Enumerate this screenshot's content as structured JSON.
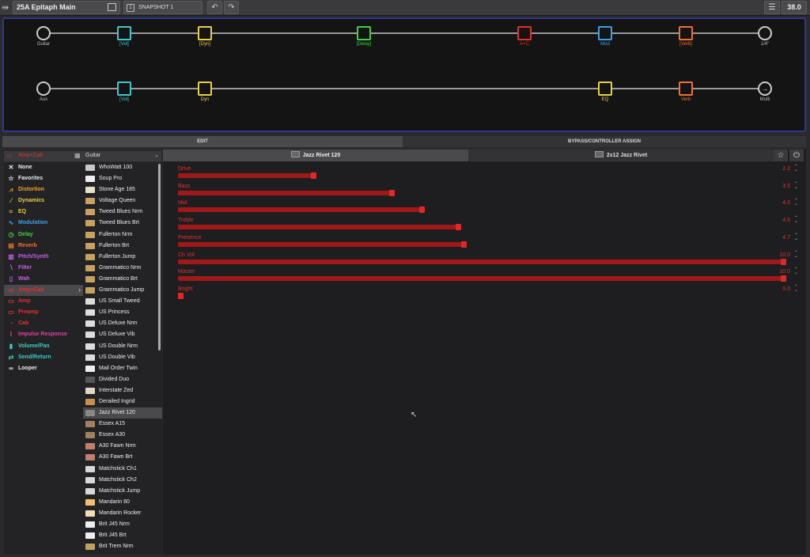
{
  "topbar": {
    "preset_name": "25A  Epitaph Main",
    "snapshot": "SNAPSHOT 1",
    "tempo": "38.0"
  },
  "signal_chain": {
    "path_a": [
      {
        "label": "Guitar",
        "kind": "input",
        "color": "#bbbbbb",
        "icon": "guitar-icon"
      },
      {
        "label": "[Vol]",
        "kind": "block",
        "color": "#3ec8c8",
        "icon": "volume-icon"
      },
      {
        "label": "[Dyn]",
        "kind": "block",
        "color": "#e8d040",
        "icon": "dynamics-icon"
      },
      {
        "label": "[Delay]",
        "kind": "block",
        "color": "#40d040",
        "icon": "delay-icon"
      },
      {
        "label": "A+C",
        "kind": "block",
        "color": "#e03030",
        "icon": "amp-cab-icon"
      },
      {
        "label": "Mod",
        "kind": "block",
        "color": "#3aa0e8",
        "icon": "modulation-icon"
      },
      {
        "label": "[Verb]",
        "kind": "block",
        "color": "#f07030",
        "icon": "reverb-icon"
      },
      {
        "label": "1/4\"",
        "kind": "output",
        "color": "#bbbbbb",
        "icon": "output-jack-icon"
      }
    ],
    "path_b": [
      {
        "label": "Aux",
        "kind": "input",
        "color": "#bbbbbb",
        "icon": "guitar-icon"
      },
      {
        "label": "[Vol]",
        "kind": "block",
        "color": "#3ec8c8",
        "icon": "volume-icon"
      },
      {
        "label": "Dyn",
        "kind": "block",
        "color": "#e8d040",
        "icon": "dynamics-icon"
      },
      {
        "label": "EQ",
        "kind": "block",
        "color": "#e8d040",
        "icon": "eq-icon"
      },
      {
        "label": "Verb",
        "kind": "block",
        "color": "#f07030",
        "icon": "reverb-icon"
      },
      {
        "label": "Multi",
        "kind": "output",
        "color": "#bbbbbb",
        "icon": "arrow-right-icon"
      }
    ]
  },
  "tabs": {
    "edit": "EDIT",
    "bypass": "BYPASS/CONTROLLER ASSIGN"
  },
  "category_header": "Amp+Cab",
  "model_header": "Guitar",
  "categories": [
    {
      "label": "None",
      "color": "#eeeeee",
      "icon": "x"
    },
    {
      "label": "Favorites",
      "color": "#eeeeee",
      "icon": "star"
    },
    {
      "label": "Distortion",
      "color": "#f0a030",
      "icon": "dist"
    },
    {
      "label": "Dynamics",
      "color": "#e8d040",
      "icon": "dyn"
    },
    {
      "label": "EQ",
      "color": "#e8d040",
      "icon": "eq"
    },
    {
      "label": "Modulation",
      "color": "#3aa0e8",
      "icon": "mod"
    },
    {
      "label": "Delay",
      "color": "#40d040",
      "icon": "delay"
    },
    {
      "label": "Reverb",
      "color": "#f07030",
      "icon": "verb"
    },
    {
      "label": "Pitch/Synth",
      "color": "#c060e0",
      "icon": "pitch"
    },
    {
      "label": "Filter",
      "color": "#c060e0",
      "icon": "filter"
    },
    {
      "label": "Wah",
      "color": "#c060e0",
      "icon": "wah"
    },
    {
      "label": "Amp+Cab",
      "color": "#e03030",
      "icon": "ampcab",
      "selected": true
    },
    {
      "label": "Amp",
      "color": "#e03030",
      "icon": "amp"
    },
    {
      "label": "Preamp",
      "color": "#e03030",
      "icon": "preamp"
    },
    {
      "label": "Cab",
      "color": "#e03030",
      "icon": "cab"
    },
    {
      "label": "Impulse Response",
      "color": "#e040a0",
      "icon": "ir"
    },
    {
      "label": "Volume/Pan",
      "color": "#3ec8c8",
      "icon": "vol"
    },
    {
      "label": "Send/Return",
      "color": "#3ec8c8",
      "icon": "send"
    },
    {
      "label": "Looper",
      "color": "#eeeeee",
      "icon": "loop"
    }
  ],
  "models": [
    {
      "label": "WhoWatt 100",
      "thumb": "#c8c8c8"
    },
    {
      "label": "Soup Pro",
      "thumb": "#eeeeee"
    },
    {
      "label": "Stone Age 185",
      "thumb": "#e8e0c8"
    },
    {
      "label": "Voltage Queen",
      "thumb": "#c8a060"
    },
    {
      "label": "Tweed Blues Nrm",
      "thumb": "#c8a060"
    },
    {
      "label": "Tweed Blues Brt",
      "thumb": "#c8a060"
    },
    {
      "label": "Fullerton Nrm",
      "thumb": "#c8a060"
    },
    {
      "label": "Fullerton Brt",
      "thumb": "#c8a060"
    },
    {
      "label": "Fullerton Jump",
      "thumb": "#c8a060"
    },
    {
      "label": "Grammatico Nrm",
      "thumb": "#c8a060"
    },
    {
      "label": "Grammatico Brt",
      "thumb": "#c8a060"
    },
    {
      "label": "Grammatico Jump",
      "thumb": "#c8a060"
    },
    {
      "label": "US Small Tweed",
      "thumb": "#dddddd"
    },
    {
      "label": "US Princess",
      "thumb": "#dddddd"
    },
    {
      "label": "US Deluxe Nrm",
      "thumb": "#dddddd"
    },
    {
      "label": "US Deluxe Vib",
      "thumb": "#dddddd"
    },
    {
      "label": "US Double Nrm",
      "thumb": "#dddddd"
    },
    {
      "label": "US Double Vib",
      "thumb": "#dddddd"
    },
    {
      "label": "Mail Order Twin",
      "thumb": "#eeeeee"
    },
    {
      "label": "Divided Duo",
      "thumb": "#555555"
    },
    {
      "label": "Interstate Zed",
      "thumb": "#e0d8c8"
    },
    {
      "label": "Derailed Ingrid",
      "thumb": "#c89050"
    },
    {
      "label": "Jazz Rivet 120",
      "thumb": "#888888",
      "selected": true
    },
    {
      "label": "Essex A15",
      "thumb": "#a08060"
    },
    {
      "label": "Essex A30",
      "thumb": "#a08060"
    },
    {
      "label": "A30 Fawn Nrm",
      "thumb": "#c08070"
    },
    {
      "label": "A30 Fawn Brt",
      "thumb": "#c08070"
    },
    {
      "label": "Matchstick Ch1",
      "thumb": "#d8d8d8"
    },
    {
      "label": "Matchstick Ch2",
      "thumb": "#d8d8d8"
    },
    {
      "label": "Matchstick Jump",
      "thumb": "#d8d8d8"
    },
    {
      "label": "Mandarin 80",
      "thumb": "#f0c070"
    },
    {
      "label": "Mandarin Rocker",
      "thumb": "#f0e0b0"
    },
    {
      "label": "Brit J45 Nrm",
      "thumb": "#eeeeee"
    },
    {
      "label": "Brit J45 Brt",
      "thumb": "#eeeeee"
    },
    {
      "label": "Brit Trem Nrm",
      "thumb": "#c0a060"
    }
  ],
  "edit_tabs": {
    "amp": "Jazz Rivet 120",
    "cab": "2x12 Jazz Rivet"
  },
  "params": [
    {
      "name": "Drive",
      "value": "2.2",
      "fraction": 0.22
    },
    {
      "name": "Bass",
      "value": "3.5",
      "fraction": 0.35
    },
    {
      "name": "Mid",
      "value": "4.0",
      "fraction": 0.4
    },
    {
      "name": "Treble",
      "value": "4.6",
      "fraction": 0.46
    },
    {
      "name": "Presence",
      "value": "4.7",
      "fraction": 0.47
    },
    {
      "name": "Ch Vol",
      "value": "10.0",
      "fraction": 1.0
    },
    {
      "name": "Master",
      "value": "10.0",
      "fraction": 1.0
    },
    {
      "name": "Bright",
      "value": "0.0",
      "fraction": 0.0
    }
  ]
}
